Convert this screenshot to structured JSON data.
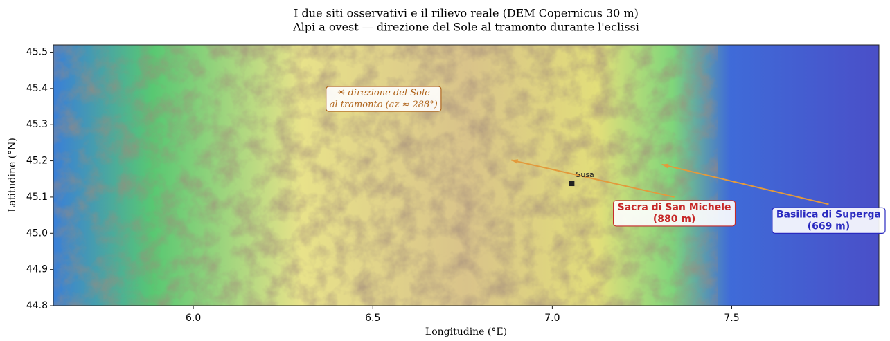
{
  "chart_data": {
    "type": "map",
    "title": [
      "I due siti osservativi e il rilievo reale (DEM Copernicus 30 m)",
      "Alpi a ovest — direzione del Sole al tramonto durante l'eclissi"
    ],
    "xlabel": "Longitudine (°E)",
    "ylabel": "Latitudine (°N)",
    "xlim": [
      5.61,
      7.91
    ],
    "ylim": [
      44.8,
      45.52
    ],
    "xticks": [
      {
        "value": 6,
        "label": "6.0"
      },
      6.5,
      {
        "value": 7,
        "label": "7.0"
      },
      7.5
    ],
    "yticks": [
      44.8,
      44.9,
      {
        "value": 45,
        "label": "45.0"
      },
      45.1,
      45.2,
      45.3,
      45.4,
      45.5
    ],
    "sites": [
      {
        "label": [
          "Sacra di San Michele",
          "(880 m)"
        ],
        "x": 7.34,
        "y": 45.1,
        "arrow_to": [
          6.886,
          45.202
        ],
        "color": "#c62828"
      },
      {
        "label": [
          "Basilica di Superga",
          "(669 m)"
        ],
        "x": 7.77,
        "y": 45.08,
        "arrow_to": [
          7.305,
          45.19
        ],
        "color": "#2a2ac0"
      }
    ],
    "town": {
      "label": "Susa",
      "x": 7.054,
      "y": 45.138
    },
    "annotation": {
      "text": [
        "☀ direzione del Sole",
        "al tramonto (az ≈ 288°)"
      ],
      "x": 6.53,
      "y": 45.37,
      "color": "#b0651c"
    },
    "arrow_color": "#e39a3c"
  }
}
